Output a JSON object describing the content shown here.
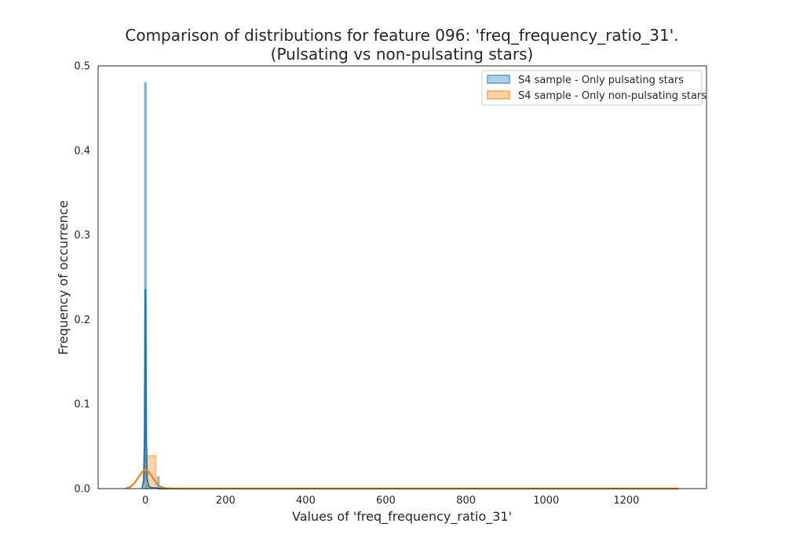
{
  "chart_data": {
    "type": "histogram_kde",
    "title_line1": "Comparison of distributions for feature 096: 'freq_frequency_ratio_31'.",
    "title_line2": "(Pulsating vs non-pulsating stars)",
    "xlabel": "Values of 'freq_frequency_ratio_31'",
    "ylabel": "Frequency of occurrence",
    "xlim": [
      -118,
      1400
    ],
    "ylim": [
      0,
      0.5
    ],
    "x_ticks": [
      0,
      200,
      400,
      600,
      800,
      1000,
      1200
    ],
    "y_ticks": [
      0.0,
      0.1,
      0.2,
      0.3,
      0.4,
      0.5
    ],
    "y_tick_labels": [
      "0.0",
      "0.1",
      "0.2",
      "0.3",
      "0.4",
      "0.5"
    ],
    "grid": false,
    "legend_position": "top-right",
    "series": [
      {
        "name": "S4 sample - Only pulsating stars",
        "color": "#1f77b4",
        "histogram": {
          "bins": [
            {
              "x0": -2,
              "x1": 2,
              "value": 0.48
            },
            {
              "x0": 2,
              "x1": 6,
              "value": 0.004
            },
            {
              "x0": 30,
              "x1": 34,
              "value": 0.014
            }
          ]
        },
        "kde": [
          [
            -8,
            0
          ],
          [
            -4,
            0.01
          ],
          [
            -2,
            0.06
          ],
          [
            -1,
            0.16
          ],
          [
            0,
            0.235
          ],
          [
            1,
            0.16
          ],
          [
            2,
            0.06
          ],
          [
            4,
            0.012
          ],
          [
            8,
            0.003
          ],
          [
            14,
            0.001
          ],
          [
            40,
            0
          ],
          [
            1330,
            0
          ]
        ]
      },
      {
        "name": "S4 sample - Only non-pulsating stars",
        "color": "#ff7f0e",
        "histogram": {
          "bins": [
            {
              "x0": 0,
              "x1": 26,
              "value": 0.039
            }
          ]
        },
        "kde": [
          [
            -50,
            0
          ],
          [
            -38,
            0.002
          ],
          [
            -28,
            0.006
          ],
          [
            -18,
            0.013
          ],
          [
            -8,
            0.02
          ],
          [
            0,
            0.023
          ],
          [
            8,
            0.02
          ],
          [
            18,
            0.013
          ],
          [
            28,
            0.006
          ],
          [
            38,
            0.002
          ],
          [
            50,
            0.0005
          ],
          [
            70,
            0
          ],
          [
            1330,
            0
          ]
        ]
      }
    ]
  }
}
